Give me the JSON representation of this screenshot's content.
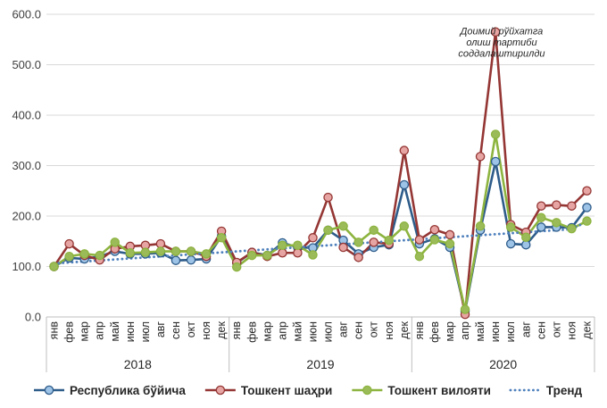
{
  "chart_data": {
    "type": "line",
    "title": "",
    "xlabel": "",
    "ylabel": "",
    "ylim": [
      0,
      600
    ],
    "yticks": [
      "0.0",
      "100.0",
      "200.0",
      "300.0",
      "400.0",
      "500.0",
      "600.0"
    ],
    "grid": "horizontal",
    "legend_position": "bottom",
    "categories": [
      "янв",
      "фев",
      "мар",
      "апр",
      "май",
      "июн",
      "июл",
      "авг",
      "сен",
      "окт",
      "ноя",
      "дек",
      "янв",
      "фев",
      "мар",
      "апр",
      "май",
      "июн",
      "июл",
      "авг",
      "сен",
      "окт",
      "ноя",
      "дек",
      "янв",
      "фев",
      "мар",
      "апр",
      "май",
      "июн",
      "июл",
      "авг",
      "сен",
      "окт",
      "ноя",
      "дек"
    ],
    "years": [
      {
        "label": "2018",
        "start": 0,
        "end": 11
      },
      {
        "label": "2019",
        "start": 12,
        "end": 23
      },
      {
        "label": "2020",
        "start": 24,
        "end": 35
      }
    ],
    "series": [
      {
        "name": "Республика бўйича",
        "color": "#2E5C8A",
        "marker_fill": "#9DC3E6",
        "values": [
          100,
          117,
          115,
          120,
          130,
          125,
          125,
          127,
          112,
          113,
          115,
          160,
          107,
          128,
          122,
          147,
          138,
          137,
          172,
          152,
          125,
          138,
          143,
          262,
          145,
          155,
          138,
          12,
          172,
          308,
          145,
          143,
          178,
          178,
          177,
          217
        ]
      },
      {
        "name": "Тошкент шаҳри",
        "color": "#943634",
        "marker_fill": "#E6A5A3",
        "values": [
          100,
          145,
          122,
          113,
          135,
          140,
          142,
          145,
          130,
          130,
          120,
          170,
          108,
          128,
          120,
          127,
          127,
          157,
          237,
          138,
          118,
          148,
          145,
          330,
          153,
          173,
          163,
          5,
          318,
          565,
          183,
          168,
          220,
          222,
          220,
          250
        ]
      },
      {
        "name": "Тошкент вилояти",
        "color": "#8DB43F",
        "marker_fill": "#9BBB59",
        "values": [
          100,
          120,
          125,
          122,
          148,
          127,
          128,
          130,
          130,
          130,
          125,
          157,
          99,
          122,
          122,
          142,
          142,
          123,
          172,
          180,
          148,
          172,
          152,
          180,
          120,
          153,
          145,
          15,
          180,
          362,
          178,
          158,
          197,
          187,
          175,
          190
        ]
      },
      {
        "name": "Тренд",
        "color": "#4F81BD",
        "dotted": true,
        "values": [
          106,
          108,
          110,
          112,
          114,
          116,
          118,
          120,
          122,
          124,
          126,
          128,
          130,
          132,
          134,
          136,
          138,
          140,
          142,
          144,
          146,
          148,
          150,
          152,
          154,
          156,
          158,
          160,
          162,
          164,
          166,
          168,
          170,
          172,
          174,
          189
        ]
      }
    ],
    "annotations": [
      {
        "text": "Доимий рўйхатга",
        "index": 29.4,
        "value": 560
      },
      {
        "text": "олиш тартиби",
        "index": 29.4,
        "value": 538
      },
      {
        "text": "соддалаштирилди",
        "index": 29.4,
        "value": 516
      }
    ]
  }
}
